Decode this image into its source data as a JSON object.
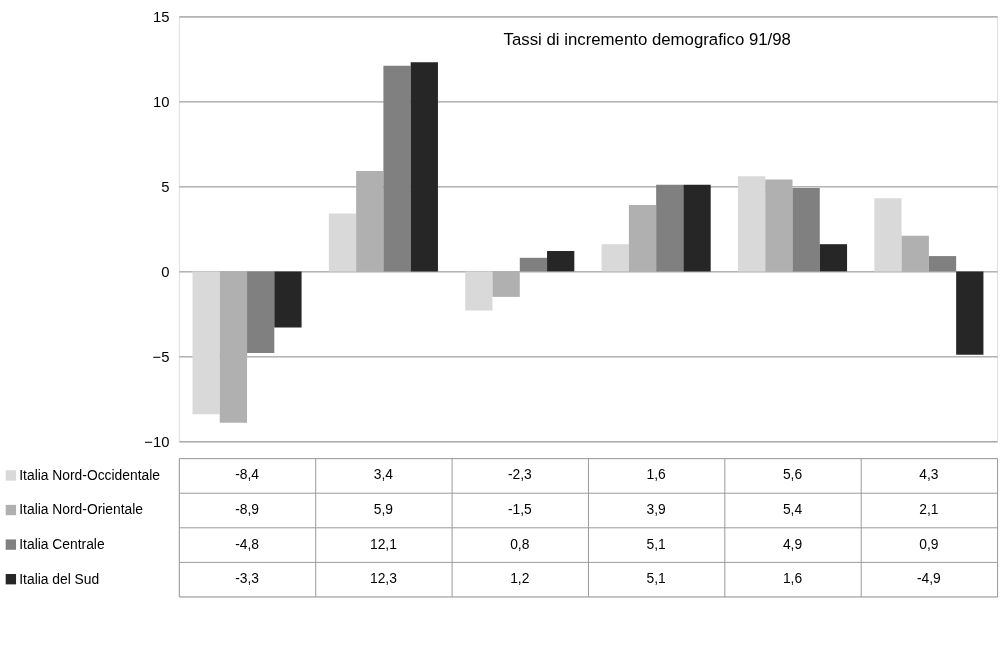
{
  "chart_data": {
    "type": "bar",
    "title": "Tassi di incremento demografico 91/98",
    "categories": [
      null,
      null,
      null,
      null,
      null,
      null
    ],
    "series": [
      {
        "name": "Italia Nord-Occidentale",
        "color": "#d9d9d9",
        "values": [
          -8.4,
          3.4,
          -2.3,
          1.6,
          5.6,
          4.3
        ],
        "value_labels": [
          "-8,4",
          "3,4",
          "-2,3",
          "1,6",
          "5,6",
          "4,3"
        ]
      },
      {
        "name": "Italia Nord-Orientale",
        "color": "#b0b0b0",
        "values": [
          -8.9,
          5.9,
          -1.5,
          3.9,
          5.4,
          2.1
        ],
        "value_labels": [
          "-8,9",
          "5,9",
          "-1,5",
          "3,9",
          "5,4",
          "2,1"
        ]
      },
      {
        "name": "Italia Centrale",
        "color": "#808080",
        "values": [
          -4.8,
          12.1,
          0.8,
          5.1,
          4.9,
          0.9
        ],
        "value_labels": [
          "-4,8",
          "12,1",
          "0,8",
          "5,1",
          "4,9",
          "0,9"
        ]
      },
      {
        "name": "Italia del Sud",
        "color": "#262626",
        "values": [
          -3.3,
          12.3,
          1.2,
          5.1,
          1.6,
          -4.9
        ],
        "value_labels": [
          "-3,3",
          "12,3",
          "1,2",
          "5,1",
          "1,6",
          "-4,9"
        ]
      }
    ],
    "ylim": [
      -10,
      15
    ],
    "yticks": [
      -10,
      -5,
      0,
      5,
      10,
      15
    ],
    "grid": "y",
    "legend": "bottom"
  }
}
